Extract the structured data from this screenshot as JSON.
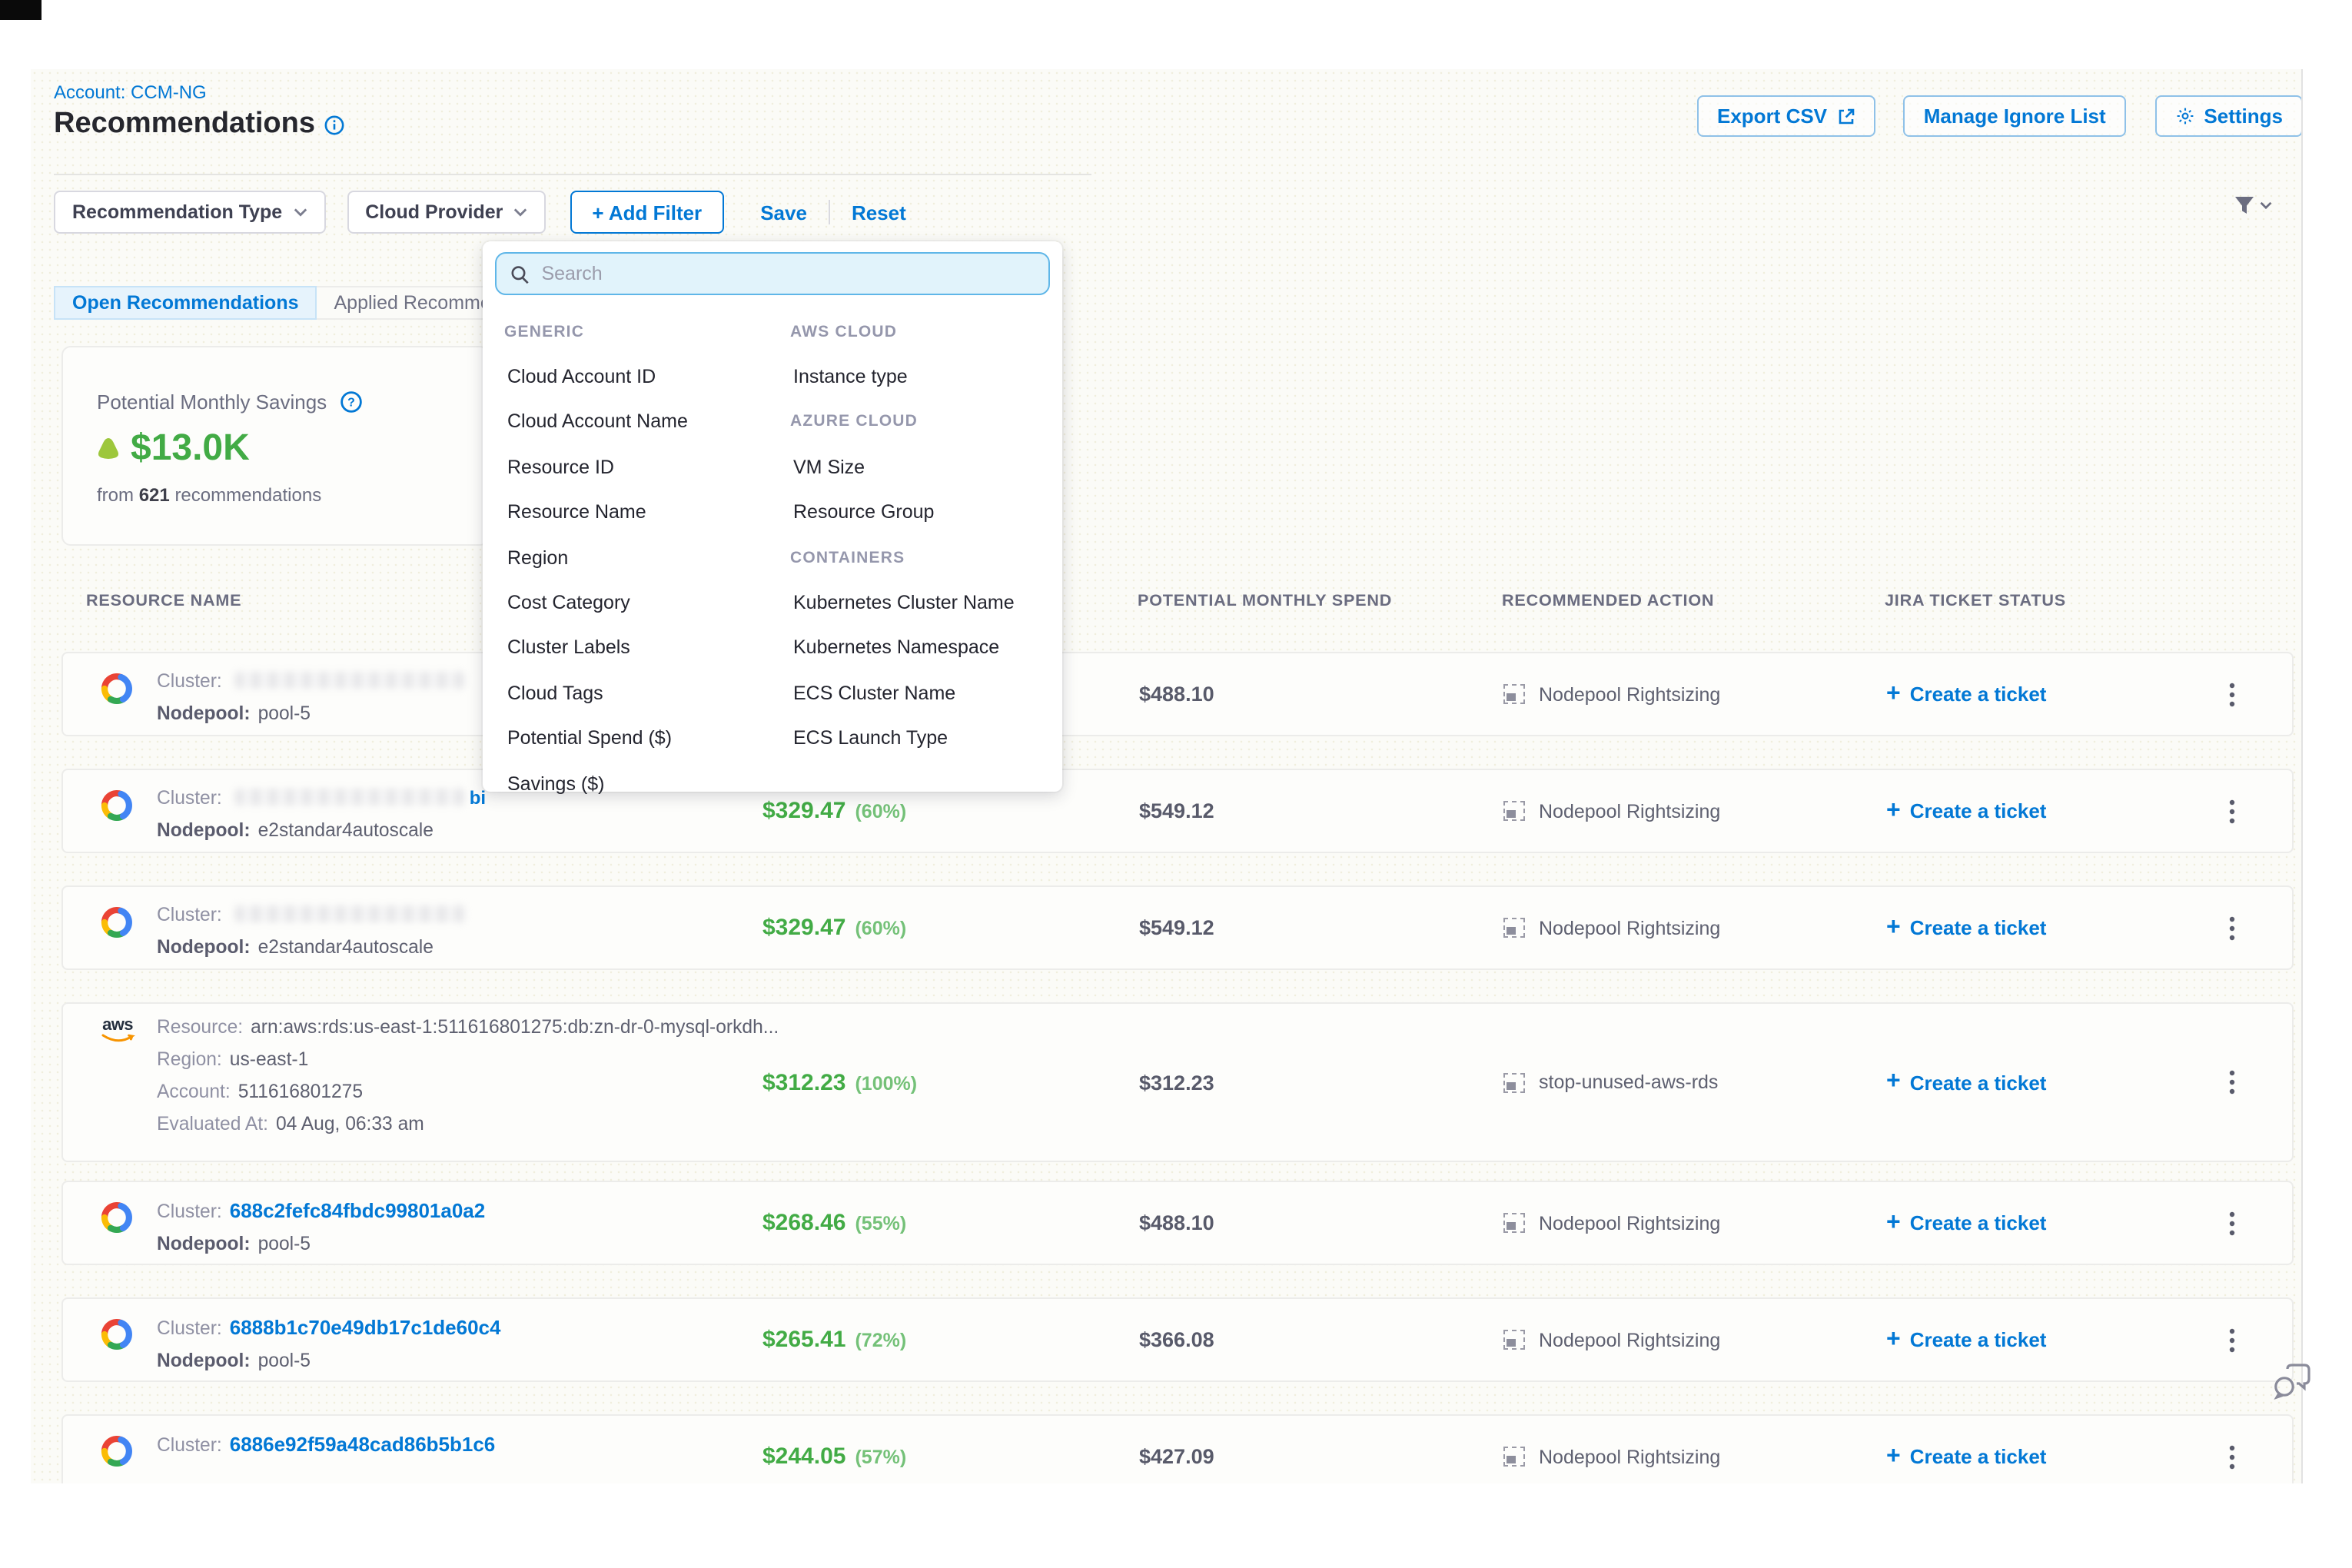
{
  "colors": {
    "accent": "#0278d5",
    "green": "#42ab45",
    "green-light": "#74c178"
  },
  "page": {
    "account": "Account: CCM-NG",
    "title": "Recommendations"
  },
  "header_actions": {
    "export": "Export CSV",
    "manage": "Manage Ignore List",
    "settings": "Settings"
  },
  "filter_bar": {
    "recommendation_type": "Recommendation Type",
    "cloud_provider": "Cloud Provider",
    "add_filter": "+ Add Filter",
    "save": "Save",
    "reset": "Reset"
  },
  "tabs": {
    "open": "Open Recommendations",
    "applied": "Applied Recommendations"
  },
  "savings_card": {
    "title": "Potential Monthly Savings",
    "amount": "$13.0K",
    "from": "from",
    "count": "621",
    "suffix": "recommendations"
  },
  "dropdown": {
    "search_placeholder": "Search",
    "left": [
      {
        "t": "GENERIC",
        "h": 1
      },
      {
        "t": "Cloud Account ID"
      },
      {
        "t": "Cloud Account Name"
      },
      {
        "t": "Resource ID"
      },
      {
        "t": "Resource Name"
      },
      {
        "t": "Region"
      },
      {
        "t": "Cost Category"
      },
      {
        "t": "Cluster Labels"
      },
      {
        "t": "Cloud Tags"
      },
      {
        "t": "Potential Spend ($)"
      },
      {
        "t": "Savings ($)"
      }
    ],
    "right": [
      {
        "t": "AWS CLOUD",
        "h": 1
      },
      {
        "t": "Instance type"
      },
      {
        "t": "AZURE CLOUD",
        "h": 1
      },
      {
        "t": "VM Size"
      },
      {
        "t": "Resource Group"
      },
      {
        "t": "CONTAINERS",
        "h": 1
      },
      {
        "t": "Kubernetes Cluster Name"
      },
      {
        "t": "Kubernetes Namespace"
      },
      {
        "t": "ECS Cluster Name"
      },
      {
        "t": "ECS Launch Type"
      }
    ]
  },
  "table": {
    "ticket_plus": "+",
    "headers": {
      "resource": "RESOURCE NAME",
      "spend": "POTENTIAL MONTHLY SPEND",
      "action": "RECOMMENDED ACTION",
      "jira": "JIRA TICKET STATUS"
    },
    "rows": [
      {
        "provider": "gcp",
        "lines": [
          [
            {
              "s": "lbl",
              "t": "Cluster:"
            },
            {
              "s": "blur"
            }
          ],
          [
            {
              "s": "lbl2",
              "t": "Nodepool:"
            },
            {
              "s": "val",
              "t": "pool-5"
            }
          ]
        ],
        "savings": "",
        "savings_pct": "",
        "spend": "$488.10",
        "action": "Nodepool Rightsizing",
        "ticket": "Create a ticket"
      },
      {
        "provider": "gcp",
        "lines": [
          [
            {
              "s": "lbl",
              "t": "Cluster:"
            },
            {
              "s": "blur"
            },
            {
              "s": "frag",
              "t": "bi"
            }
          ],
          [
            {
              "s": "lbl2",
              "t": "Nodepool:"
            },
            {
              "s": "val",
              "t": "e2standar4autoscale"
            }
          ]
        ],
        "savings": "$329.47",
        "savings_pct": "(60%)",
        "spend": "$549.12",
        "action": "Nodepool Rightsizing",
        "ticket": "Create a ticket"
      },
      {
        "provider": "gcp",
        "lines": [
          [
            {
              "s": "lbl",
              "t": "Cluster:"
            },
            {
              "s": "blur"
            }
          ],
          [
            {
              "s": "lbl2",
              "t": "Nodepool:"
            },
            {
              "s": "val",
              "t": "e2standar4autoscale"
            }
          ]
        ],
        "savings": "$329.47",
        "savings_pct": "(60%)",
        "spend": "$549.12",
        "action": "Nodepool Rightsizing",
        "ticket": "Create a ticket"
      },
      {
        "provider": "aws",
        "lines": [
          [
            {
              "s": "lbl",
              "t": "Resource:"
            },
            {
              "s": "val",
              "t": "arn:aws:rds:us-east-1:511616801275:db:zn-dr-0-mysql-orkdh..."
            }
          ],
          [
            {
              "s": "lbl",
              "t": "Region:"
            },
            {
              "s": "val",
              "t": "us-east-1"
            }
          ],
          [
            {
              "s": "lbl",
              "t": "Account:"
            },
            {
              "s": "val",
              "t": "511616801275"
            }
          ],
          [
            {
              "s": "lbl",
              "t": "Evaluated At:"
            },
            {
              "s": "val",
              "t": "04 Aug, 06:33 am"
            }
          ]
        ],
        "savings": "$312.23",
        "savings_pct": "(100%)",
        "spend": "$312.23",
        "action": "stop-unused-aws-rds",
        "ticket": "Create a ticket"
      },
      {
        "provider": "gcp",
        "lines": [
          [
            {
              "s": "lbl",
              "t": "Cluster:"
            },
            {
              "s": "lnk",
              "t": "688c2fefc84fbdc99801a0a2"
            }
          ],
          [
            {
              "s": "lbl2",
              "t": "Nodepool:"
            },
            {
              "s": "val",
              "t": "pool-5"
            }
          ]
        ],
        "savings": "$268.46",
        "savings_pct": "(55%)",
        "spend": "$488.10",
        "action": "Nodepool Rightsizing",
        "ticket": "Create a ticket"
      },
      {
        "provider": "gcp",
        "lines": [
          [
            {
              "s": "lbl",
              "t": "Cluster:"
            },
            {
              "s": "lnk",
              "t": "6888b1c70e49db17c1de60c4"
            }
          ],
          [
            {
              "s": "lbl2",
              "t": "Nodepool:"
            },
            {
              "s": "val",
              "t": "pool-5"
            }
          ]
        ],
        "savings": "$265.41",
        "savings_pct": "(72%)",
        "spend": "$366.08",
        "action": "Nodepool Rightsizing",
        "ticket": "Create a ticket"
      },
      {
        "provider": "gcp",
        "lines": [
          [
            {
              "s": "lbl",
              "t": "Cluster:"
            },
            {
              "s": "lnk",
              "t": "6886e92f59a48cad86b5b1c6"
            }
          ]
        ],
        "savings": "$244.05",
        "savings_pct": "(57%)",
        "spend": "$427.09",
        "action": "Nodepool Rightsizing",
        "ticket": "Create a ticket"
      }
    ]
  }
}
